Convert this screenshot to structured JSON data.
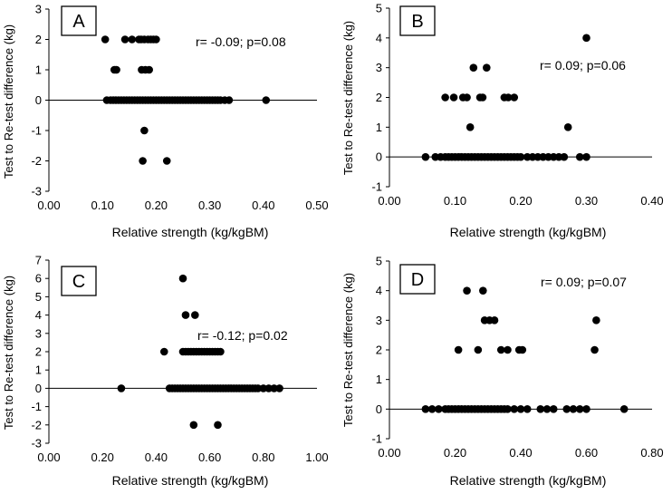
{
  "chart_data": [
    {
      "type": "scatter",
      "panel_label": "A",
      "annotation": "r= -0.09; p=0.08",
      "xlabel": "Relative strength (kg/kgBM)",
      "ylabel": "Test to Re-test difference (kg)",
      "xlim": [
        0,
        0.5
      ],
      "ylim": [
        -3,
        3
      ],
      "xticks": [
        "0.00",
        "0.10",
        "0.20",
        "0.30",
        "0.40",
        "0.50"
      ],
      "yticks": [
        "-3",
        "-2",
        "-1",
        "0",
        "1",
        "2",
        "3"
      ],
      "points": [
        [
          0.105,
          2
        ],
        [
          0.142,
          2
        ],
        [
          0.155,
          2
        ],
        [
          0.168,
          2
        ],
        [
          0.172,
          2
        ],
        [
          0.178,
          2
        ],
        [
          0.185,
          2
        ],
        [
          0.19,
          2
        ],
        [
          0.195,
          2
        ],
        [
          0.2,
          2
        ],
        [
          0.122,
          1
        ],
        [
          0.126,
          1
        ],
        [
          0.173,
          1
        ],
        [
          0.18,
          1
        ],
        [
          0.187,
          1
        ],
        [
          0.108,
          0
        ],
        [
          0.115,
          0
        ],
        [
          0.12,
          0
        ],
        [
          0.125,
          0
        ],
        [
          0.13,
          0
        ],
        [
          0.135,
          0
        ],
        [
          0.14,
          0
        ],
        [
          0.145,
          0
        ],
        [
          0.15,
          0
        ],
        [
          0.155,
          0
        ],
        [
          0.16,
          0
        ],
        [
          0.165,
          0
        ],
        [
          0.17,
          0
        ],
        [
          0.175,
          0
        ],
        [
          0.18,
          0
        ],
        [
          0.185,
          0
        ],
        [
          0.19,
          0
        ],
        [
          0.195,
          0
        ],
        [
          0.2,
          0
        ],
        [
          0.205,
          0
        ],
        [
          0.21,
          0
        ],
        [
          0.215,
          0
        ],
        [
          0.22,
          0
        ],
        [
          0.225,
          0
        ],
        [
          0.23,
          0
        ],
        [
          0.235,
          0
        ],
        [
          0.24,
          0
        ],
        [
          0.245,
          0
        ],
        [
          0.25,
          0
        ],
        [
          0.255,
          0
        ],
        [
          0.26,
          0
        ],
        [
          0.265,
          0
        ],
        [
          0.27,
          0
        ],
        [
          0.275,
          0
        ],
        [
          0.28,
          0
        ],
        [
          0.285,
          0
        ],
        [
          0.29,
          0
        ],
        [
          0.295,
          0
        ],
        [
          0.3,
          0
        ],
        [
          0.305,
          0
        ],
        [
          0.31,
          0
        ],
        [
          0.315,
          0
        ],
        [
          0.32,
          0
        ],
        [
          0.328,
          0
        ],
        [
          0.336,
          0
        ],
        [
          0.405,
          0
        ],
        [
          0.178,
          -1
        ],
        [
          0.175,
          -2
        ],
        [
          0.22,
          -2
        ]
      ]
    },
    {
      "type": "scatter",
      "panel_label": "B",
      "annotation": "r= 0.09; p=0.06",
      "xlabel": "Relative strength (kg/kgBM)",
      "ylabel": "Test to Re-test difference (kg)",
      "xlim": [
        0,
        0.4
      ],
      "ylim": [
        -1,
        5
      ],
      "xticks": [
        "0.00",
        "0.10",
        "0.20",
        "0.30",
        "0.40"
      ],
      "yticks": [
        "-1",
        "0",
        "1",
        "2",
        "3",
        "4",
        "5"
      ],
      "points": [
        [
          0.3,
          4
        ],
        [
          0.128,
          3
        ],
        [
          0.148,
          3
        ],
        [
          0.085,
          2
        ],
        [
          0.098,
          2
        ],
        [
          0.112,
          2
        ],
        [
          0.118,
          2
        ],
        [
          0.138,
          2
        ],
        [
          0.142,
          2
        ],
        [
          0.175,
          2
        ],
        [
          0.181,
          2
        ],
        [
          0.19,
          2
        ],
        [
          0.123,
          1
        ],
        [
          0.272,
          1
        ],
        [
          0.055,
          0
        ],
        [
          0.07,
          0
        ],
        [
          0.078,
          0
        ],
        [
          0.085,
          0
        ],
        [
          0.09,
          0
        ],
        [
          0.095,
          0
        ],
        [
          0.1,
          0
        ],
        [
          0.105,
          0
        ],
        [
          0.11,
          0
        ],
        [
          0.115,
          0
        ],
        [
          0.12,
          0
        ],
        [
          0.125,
          0
        ],
        [
          0.13,
          0
        ],
        [
          0.135,
          0
        ],
        [
          0.14,
          0
        ],
        [
          0.145,
          0
        ],
        [
          0.15,
          0
        ],
        [
          0.155,
          0
        ],
        [
          0.16,
          0
        ],
        [
          0.165,
          0
        ],
        [
          0.17,
          0
        ],
        [
          0.175,
          0
        ],
        [
          0.18,
          0
        ],
        [
          0.185,
          0
        ],
        [
          0.19,
          0
        ],
        [
          0.195,
          0
        ],
        [
          0.2,
          0
        ],
        [
          0.21,
          0
        ],
        [
          0.218,
          0
        ],
        [
          0.226,
          0
        ],
        [
          0.234,
          0
        ],
        [
          0.242,
          0
        ],
        [
          0.25,
          0
        ],
        [
          0.258,
          0
        ],
        [
          0.266,
          0
        ],
        [
          0.29,
          0
        ],
        [
          0.3,
          0
        ]
      ]
    },
    {
      "type": "scatter",
      "panel_label": "C",
      "annotation": "r= -0.12; p=0.02",
      "xlabel": "Relative strength (kg/kgBM)",
      "ylabel": "Test to Re-test difference (kg)",
      "xlim": [
        0,
        1
      ],
      "ylim": [
        -3,
        7
      ],
      "xticks": [
        "0.00",
        "0.20",
        "0.40",
        "0.60",
        "0.80",
        "1.00"
      ],
      "yticks": [
        "-3",
        "-2",
        "-1",
        "0",
        "1",
        "2",
        "3",
        "4",
        "5",
        "6",
        "7"
      ],
      "points": [
        [
          0.5,
          6
        ],
        [
          0.51,
          4
        ],
        [
          0.545,
          4
        ],
        [
          0.43,
          2
        ],
        [
          0.5,
          2
        ],
        [
          0.51,
          2
        ],
        [
          0.52,
          2
        ],
        [
          0.53,
          2
        ],
        [
          0.54,
          2
        ],
        [
          0.55,
          2
        ],
        [
          0.56,
          2
        ],
        [
          0.57,
          2
        ],
        [
          0.58,
          2
        ],
        [
          0.59,
          2
        ],
        [
          0.6,
          2
        ],
        [
          0.61,
          2
        ],
        [
          0.62,
          2
        ],
        [
          0.63,
          2
        ],
        [
          0.64,
          2
        ],
        [
          0.27,
          0
        ],
        [
          0.45,
          0
        ],
        [
          0.46,
          0
        ],
        [
          0.47,
          0
        ],
        [
          0.48,
          0
        ],
        [
          0.49,
          0
        ],
        [
          0.5,
          0
        ],
        [
          0.51,
          0
        ],
        [
          0.52,
          0
        ],
        [
          0.53,
          0
        ],
        [
          0.54,
          0
        ],
        [
          0.55,
          0
        ],
        [
          0.56,
          0
        ],
        [
          0.57,
          0
        ],
        [
          0.58,
          0
        ],
        [
          0.59,
          0
        ],
        [
          0.6,
          0
        ],
        [
          0.61,
          0
        ],
        [
          0.62,
          0
        ],
        [
          0.63,
          0
        ],
        [
          0.64,
          0
        ],
        [
          0.65,
          0
        ],
        [
          0.66,
          0
        ],
        [
          0.67,
          0
        ],
        [
          0.68,
          0
        ],
        [
          0.69,
          0
        ],
        [
          0.7,
          0
        ],
        [
          0.71,
          0
        ],
        [
          0.72,
          0
        ],
        [
          0.73,
          0
        ],
        [
          0.74,
          0
        ],
        [
          0.75,
          0
        ],
        [
          0.76,
          0
        ],
        [
          0.77,
          0
        ],
        [
          0.78,
          0
        ],
        [
          0.8,
          0
        ],
        [
          0.82,
          0
        ],
        [
          0.84,
          0
        ],
        [
          0.86,
          0
        ],
        [
          0.54,
          -2
        ],
        [
          0.63,
          -2
        ]
      ]
    },
    {
      "type": "scatter",
      "panel_label": "D",
      "annotation": "r= 0.09; p=0.07",
      "xlabel": "Relative strength (kg/kgBM)",
      "ylabel": "Test to Re-test difference (kg)",
      "xlim": [
        0,
        0.8
      ],
      "ylim": [
        -1,
        5
      ],
      "xticks": [
        "0.00",
        "0.20",
        "0.40",
        "0.60",
        "0.80"
      ],
      "yticks": [
        "-1",
        "0",
        "1",
        "2",
        "3",
        "4",
        "5"
      ],
      "points": [
        [
          0.236,
          4
        ],
        [
          0.285,
          4
        ],
        [
          0.29,
          3
        ],
        [
          0.305,
          3
        ],
        [
          0.32,
          3
        ],
        [
          0.63,
          3
        ],
        [
          0.21,
          2
        ],
        [
          0.27,
          2
        ],
        [
          0.34,
          2
        ],
        [
          0.36,
          2
        ],
        [
          0.395,
          2
        ],
        [
          0.405,
          2
        ],
        [
          0.625,
          2
        ],
        [
          0.11,
          0
        ],
        [
          0.13,
          0
        ],
        [
          0.15,
          0
        ],
        [
          0.17,
          0
        ],
        [
          0.18,
          0
        ],
        [
          0.19,
          0
        ],
        [
          0.2,
          0
        ],
        [
          0.21,
          0
        ],
        [
          0.22,
          0
        ],
        [
          0.23,
          0
        ],
        [
          0.24,
          0
        ],
        [
          0.25,
          0
        ],
        [
          0.26,
          0
        ],
        [
          0.27,
          0
        ],
        [
          0.28,
          0
        ],
        [
          0.29,
          0
        ],
        [
          0.3,
          0
        ],
        [
          0.31,
          0
        ],
        [
          0.32,
          0
        ],
        [
          0.33,
          0
        ],
        [
          0.34,
          0
        ],
        [
          0.35,
          0
        ],
        [
          0.36,
          0
        ],
        [
          0.38,
          0
        ],
        [
          0.4,
          0
        ],
        [
          0.42,
          0
        ],
        [
          0.46,
          0
        ],
        [
          0.48,
          0
        ],
        [
          0.5,
          0
        ],
        [
          0.54,
          0
        ],
        [
          0.56,
          0
        ],
        [
          0.58,
          0
        ],
        [
          0.6,
          0
        ],
        [
          0.715,
          0
        ]
      ]
    }
  ]
}
